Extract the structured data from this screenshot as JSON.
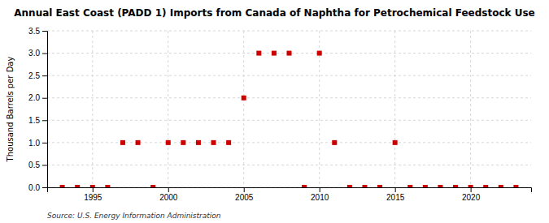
{
  "chart_data": {
    "type": "scatter",
    "title": "Annual East Coast (PADD 1) Imports from Canada of Naphtha for Petrochemical Feedstock Use",
    "ylabel": "Thousand Barrels per Day",
    "source": "Source: U.S. Energy Information Administration",
    "color": "#cc0000",
    "marker": "square",
    "grid": true,
    "x": [
      1993,
      1994,
      1995,
      1996,
      1997,
      1998,
      1999,
      2000,
      2001,
      2002,
      2003,
      2004,
      2005,
      2006,
      2007,
      2008,
      2009,
      2010,
      2011,
      2012,
      2013,
      2014,
      2015,
      2016,
      2017,
      2018,
      2019,
      2020,
      2021,
      2022,
      2023
    ],
    "values": [
      0.0,
      0.0,
      0.0,
      0.0,
      1.0,
      1.0,
      0.0,
      1.0,
      1.0,
      1.0,
      1.0,
      1.0,
      2.0,
      3.0,
      3.0,
      3.0,
      0.0,
      3.0,
      1.0,
      0.0,
      0.0,
      0.0,
      1.0,
      0.0,
      0.0,
      0.0,
      0.0,
      0.0,
      0.0,
      0.0,
      0.0
    ],
    "xlim": [
      1992,
      2024
    ],
    "xticks": [
      1995,
      2000,
      2005,
      2010,
      2015,
      2020
    ],
    "ylim": [
      0,
      3.5
    ],
    "yticks": [
      {
        "value": 0,
        "label": "0.0"
      },
      0.5,
      {
        "value": 1,
        "label": "1.0"
      },
      1.5,
      {
        "value": 2,
        "label": "2.0"
      },
      2.5,
      {
        "value": 3,
        "label": "3.0"
      },
      3.5
    ]
  }
}
